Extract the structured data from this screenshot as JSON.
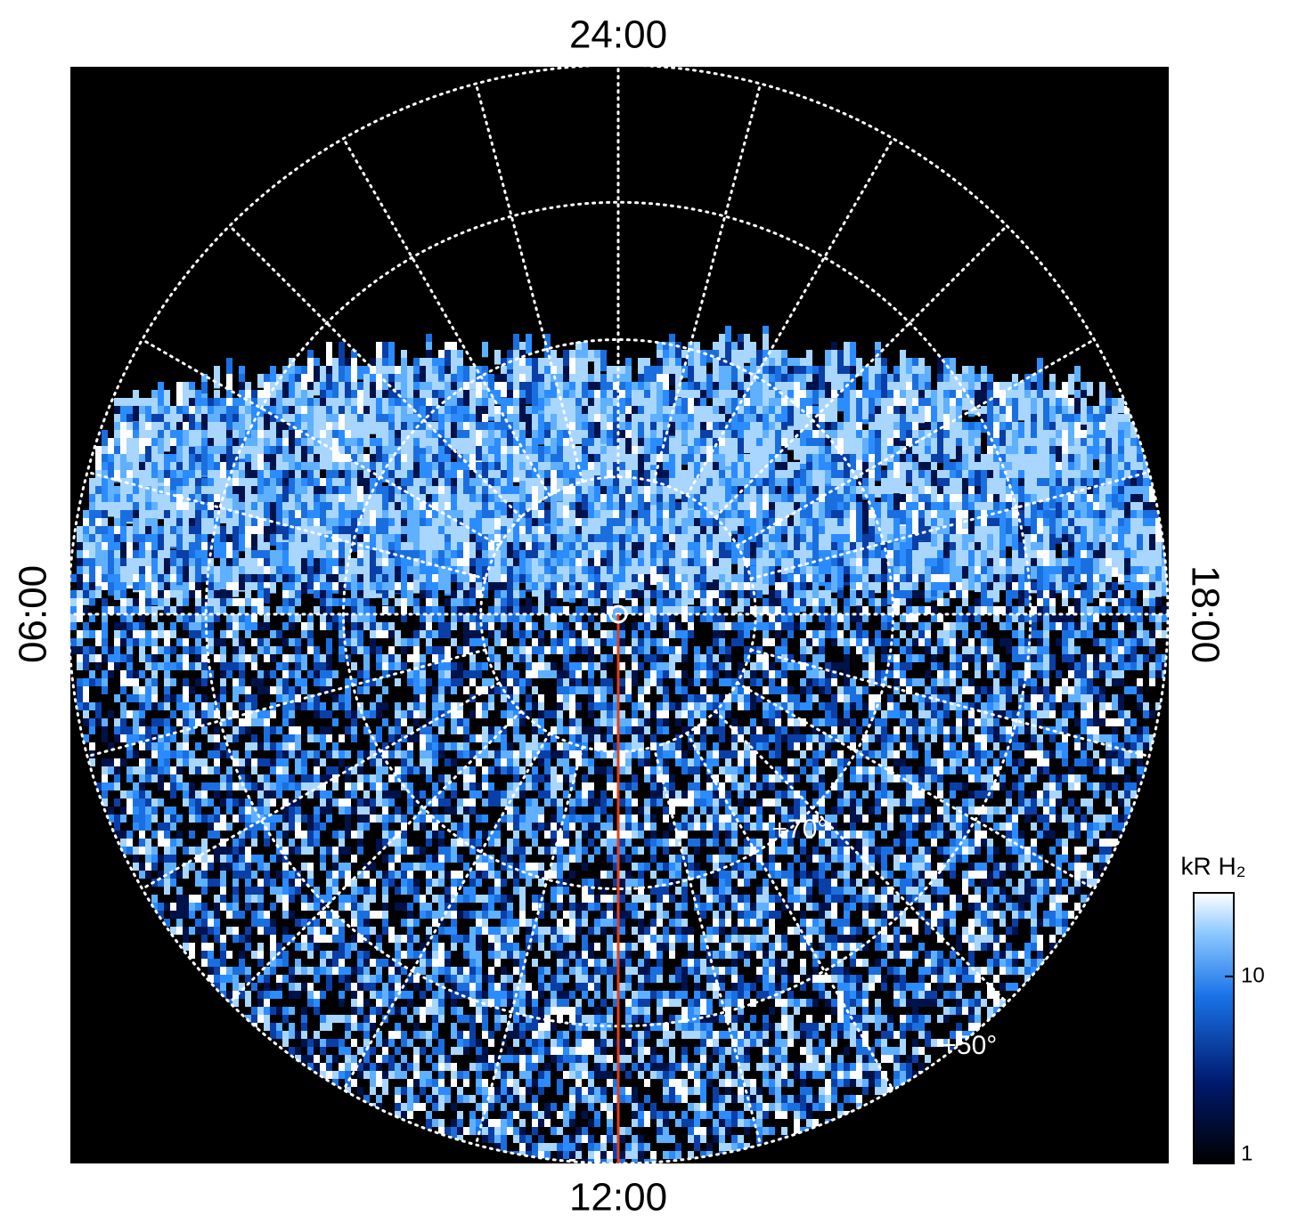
{
  "chart_data": {
    "type": "polar_image",
    "labels": {
      "top": "24:00",
      "bottom": "12:00",
      "left": "06:00",
      "right": "18:00"
    },
    "circle_labels": [
      {
        "value": 70,
        "label": "+70°"
      },
      {
        "value": 50,
        "label": "+50°"
      }
    ],
    "colorbar": {
      "title": "kR H₂",
      "log": true,
      "clim": [
        1,
        28
      ],
      "ticks": [
        1,
        10
      ]
    }
  }
}
